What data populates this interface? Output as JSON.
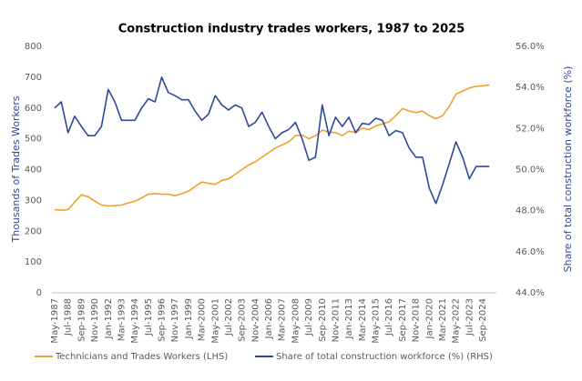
{
  "chart_data": {
    "type": "line",
    "title": "Construction industry trades workers, 1987 to 2025",
    "y_label": "Thousands of Trades Workers",
    "y2_label": "Share of total construction workforce (%)",
    "categories": [
      "May-1987",
      null,
      "Jul-1988",
      null,
      "Sep-1989",
      null,
      "Nov-1990",
      null,
      "Jan-1992",
      null,
      "Mar-1993",
      null,
      "May-1994",
      null,
      "Jul-1995",
      null,
      "Sep-1996",
      null,
      "Nov-1997",
      null,
      "Jan-1999",
      null,
      "Mar-2000",
      null,
      "May-2001",
      null,
      "Jul-2002",
      null,
      "Sep-2003",
      null,
      "Nov-2004",
      null,
      "Jan-2006",
      null,
      "Mar-2007",
      null,
      "May-2008",
      null,
      "Jul-2009",
      null,
      "Sep-2010",
      null,
      "Nov-2011",
      null,
      "Jan-2013",
      null,
      "Mar-2014",
      null,
      "May-2015",
      null,
      "Jul-2016",
      null,
      "Sep-2017",
      null,
      "Nov-2018",
      null,
      "Jan-2020",
      null,
      "Mar-2021",
      null,
      "May-2022",
      null,
      "Jul-2023",
      null,
      "Sep-2024",
      null
    ],
    "series": [
      {
        "name": "Technicians and Trades Workers (LHS)",
        "color": "#f0a02c",
        "axis": "y",
        "values": [
          270,
          268,
          270,
          295,
          318,
          312,
          298,
          285,
          282,
          283,
          285,
          292,
          297,
          308,
          320,
          322,
          320,
          320,
          315,
          322,
          330,
          345,
          360,
          355,
          352,
          365,
          370,
          385,
          400,
          415,
          425,
          440,
          455,
          470,
          480,
          490,
          510,
          512,
          500,
          510,
          528,
          522,
          520,
          510,
          525,
          520,
          535,
          530,
          542,
          548,
          555,
          575,
          598,
          590,
          585,
          590,
          575,
          565,
          575,
          605,
          645,
          655,
          665,
          670,
          672,
          675
        ]
      },
      {
        "name": "Share of total construction workforce (%) (RHS)",
        "color": "#2f4a9c",
        "axis": "y2",
        "values": [
          53.0,
          53.3,
          51.8,
          52.6,
          52.1,
          51.65,
          51.65,
          52.1,
          53.9,
          53.3,
          52.4,
          52.4,
          52.4,
          53.0,
          53.45,
          53.3,
          54.5,
          53.75,
          53.6,
          53.4,
          53.4,
          52.85,
          52.4,
          52.7,
          53.6,
          53.15,
          52.9,
          53.15,
          53.0,
          52.1,
          52.3,
          52.8,
          52.1,
          51.5,
          51.8,
          51.95,
          52.3,
          51.5,
          50.45,
          50.6,
          53.15,
          51.65,
          52.55,
          52.1,
          52.55,
          51.8,
          52.25,
          52.2,
          52.5,
          52.4,
          51.65,
          51.9,
          51.8,
          51.05,
          50.6,
          50.6,
          49.1,
          48.35,
          49.25,
          50.3,
          51.35,
          50.6,
          49.55,
          50.15,
          50.15,
          50.15
        ]
      }
    ],
    "ylim": [
      0,
      800
    ],
    "yticks": [
      0,
      100,
      200,
      300,
      400,
      500,
      600,
      700,
      800
    ],
    "y2lim": [
      44,
      56
    ],
    "y2ticks": [
      {
        "value": 44,
        "label": "44.0%"
      },
      {
        "value": 46,
        "label": "46.0%"
      },
      {
        "value": 48,
        "label": "48.0%"
      },
      {
        "value": 50,
        "label": "50.0%"
      },
      {
        "value": 52,
        "label": "52.0%"
      },
      {
        "value": 54,
        "label": "54.0%"
      },
      {
        "value": 56,
        "label": "56.0%"
      }
    ],
    "legend": "bottom",
    "grid": false
  }
}
